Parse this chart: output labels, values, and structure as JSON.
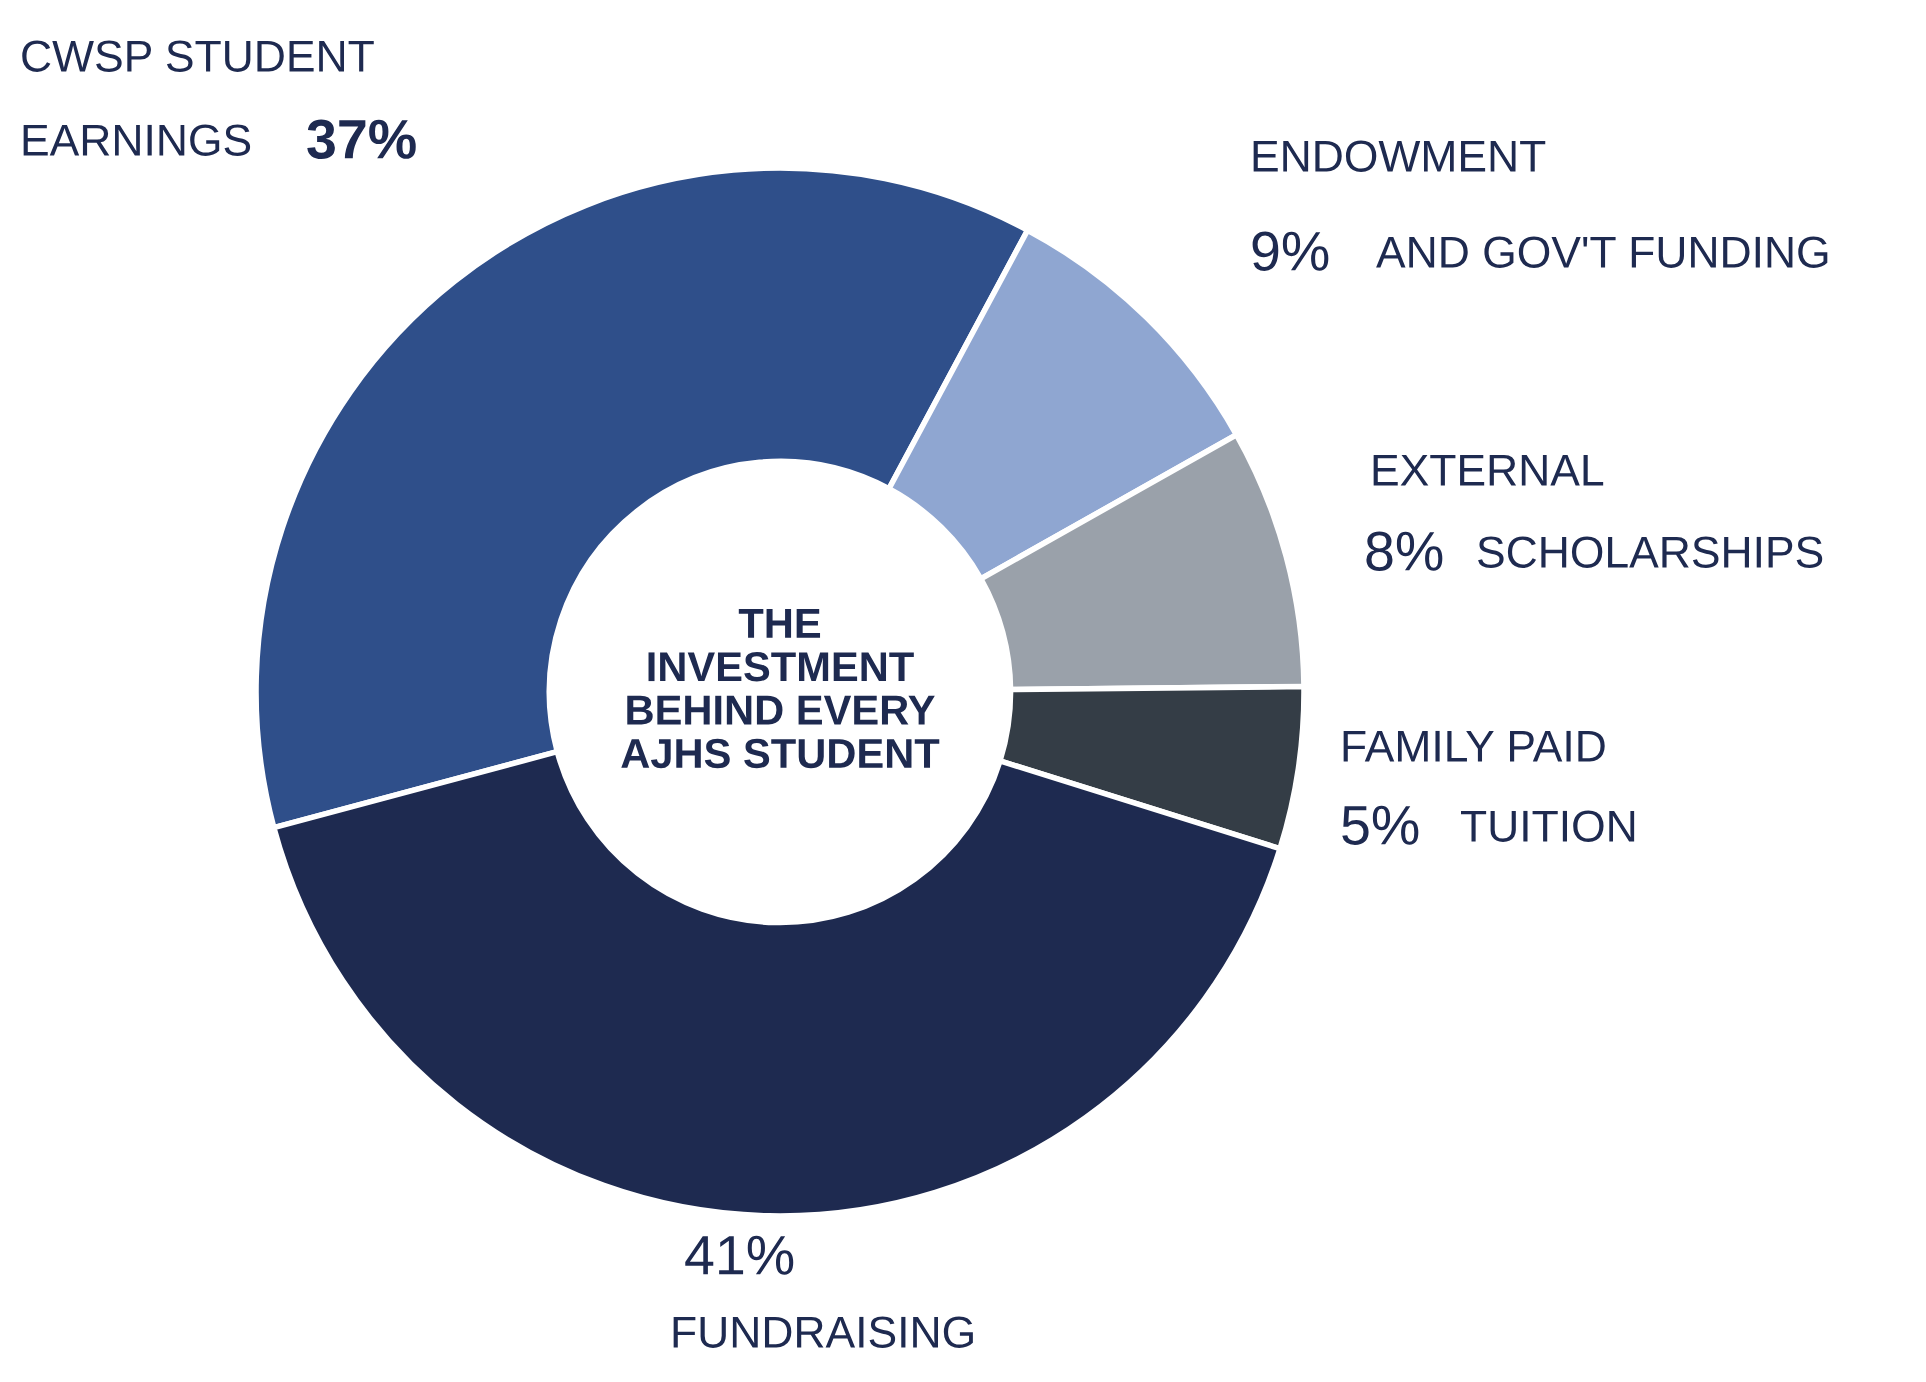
{
  "chart_data": {
    "type": "donut",
    "title": "THE\nINVESTMENT\nBEHIND EVERY\nAJHS STUDENT",
    "categories": [
      "CWSP STUDENT\nEARNINGS",
      "ENDOWMENT\nAND GOV'T FUNDING",
      "EXTERNAL\nSCHOLARSHIPS",
      "FAMILY PAID\nTUITION",
      "FUNDRAISING"
    ],
    "values": [
      37,
      9,
      8,
      5,
      41
    ],
    "colors": [
      "#2f4f8a",
      "#8fa6d1",
      "#9aa1aa",
      "#343d46",
      "#1e2a50"
    ],
    "value_labels": [
      "37%",
      "9%",
      "8%",
      "5%",
      "41%"
    ],
    "legend": false
  }
}
